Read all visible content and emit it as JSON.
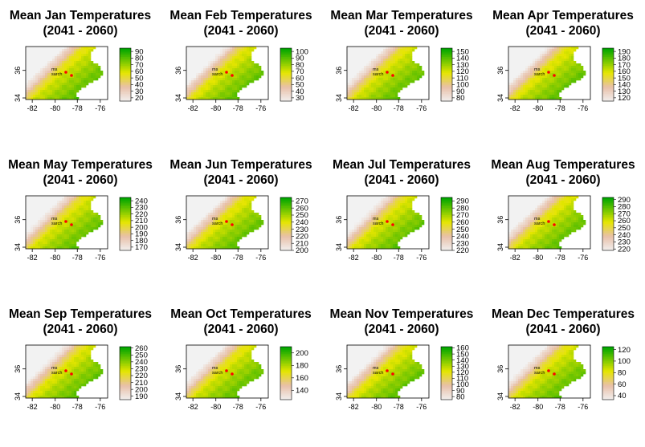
{
  "chart_data": [
    {
      "type": "heatmap",
      "title": "Mean Jan Temperatures",
      "subtitle": "(2041 - 2060)",
      "xticks": [
        "-82",
        "-80",
        "-78",
        "-76"
      ],
      "yticks": [
        "34",
        "36"
      ],
      "legend_ticks": [
        "20",
        "30",
        "40",
        "50",
        "60",
        "70",
        "80",
        "90"
      ],
      "legend_range": [
        15,
        95
      ],
      "state": "Jan"
    },
    {
      "type": "heatmap",
      "title": "Mean Feb Temperatures",
      "subtitle": "(2041 - 2060)",
      "xticks": [
        "-82",
        "-80",
        "-78",
        "-76"
      ],
      "yticks": [
        "34",
        "36"
      ],
      "legend_ticks": [
        "30",
        "40",
        "50",
        "60",
        "70",
        "80",
        "90",
        "100"
      ],
      "legend_range": [
        25,
        105
      ],
      "state": "Feb"
    },
    {
      "type": "heatmap",
      "title": "Mean Mar Temperatures",
      "subtitle": "(2041 - 2060)",
      "xticks": [
        "-82",
        "-80",
        "-78",
        "-76"
      ],
      "yticks": [
        "34",
        "36"
      ],
      "legend_ticks": [
        "80",
        "90",
        "100",
        "110",
        "120",
        "130",
        "140",
        "150"
      ],
      "legend_range": [
        75,
        155
      ],
      "state": "Mar"
    },
    {
      "type": "heatmap",
      "title": "Mean Apr Temperatures",
      "subtitle": "(2041 - 2060)",
      "xticks": [
        "-82",
        "-80",
        "-78",
        "-76"
      ],
      "yticks": [
        "34",
        "36"
      ],
      "legend_ticks": [
        "120",
        "130",
        "140",
        "150",
        "160",
        "170",
        "180",
        "190"
      ],
      "legend_range": [
        115,
        195
      ],
      "state": "Apr"
    },
    {
      "type": "heatmap",
      "title": "Mean May Temperatures",
      "subtitle": "(2041 - 2060)",
      "xticks": [
        "-82",
        "-80",
        "-78",
        "-76"
      ],
      "yticks": [
        "34",
        "36"
      ],
      "legend_ticks": [
        "170",
        "180",
        "190",
        "200",
        "210",
        "220",
        "230",
        "240"
      ],
      "legend_range": [
        165,
        245
      ],
      "state": "May"
    },
    {
      "type": "heatmap",
      "title": "Mean Jun Temperatures",
      "subtitle": "(2041 - 2060)",
      "xticks": [
        "-82",
        "-80",
        "-78",
        "-76"
      ],
      "yticks": [
        "34",
        "36"
      ],
      "legend_ticks": [
        "200",
        "210",
        "220",
        "230",
        "240",
        "250",
        "260",
        "270"
      ],
      "legend_range": [
        200,
        275
      ],
      "state": "Jun"
    },
    {
      "type": "heatmap",
      "title": "Mean Jul Temperatures",
      "subtitle": "(2041 - 2060)",
      "xticks": [
        "-82",
        "-80",
        "-78",
        "-76"
      ],
      "yticks": [
        "34",
        "36"
      ],
      "legend_ticks": [
        "220",
        "230",
        "240",
        "250",
        "260",
        "270",
        "280",
        "290"
      ],
      "legend_range": [
        220,
        295
      ],
      "state": "Jul"
    },
    {
      "type": "heatmap",
      "title": "Mean Aug Temperatures",
      "subtitle": "(2041 - 2060)",
      "xticks": [
        "-82",
        "-80",
        "-78",
        "-76"
      ],
      "yticks": [
        "34",
        "36"
      ],
      "legend_ticks": [
        "220",
        "230",
        "240",
        "250",
        "260",
        "270",
        "280",
        "290"
      ],
      "legend_range": [
        218,
        293
      ],
      "state": "Aug"
    },
    {
      "type": "heatmap",
      "title": "Mean Sep Temperatures",
      "subtitle": "(2041 - 2060)",
      "xticks": [
        "-82",
        "-80",
        "-78",
        "-76"
      ],
      "yticks": [
        "34",
        "36"
      ],
      "legend_ticks": [
        "190",
        "200",
        "210",
        "220",
        "230",
        "240",
        "250",
        "260"
      ],
      "legend_range": [
        185,
        262
      ],
      "state": "Sep"
    },
    {
      "type": "heatmap",
      "title": "Mean Oct Temperatures",
      "subtitle": "(2041 - 2060)",
      "xticks": [
        "-82",
        "-80",
        "-78",
        "-76"
      ],
      "yticks": [
        "34",
        "36"
      ],
      "legend_ticks": [
        "140",
        "160",
        "180",
        "200"
      ],
      "legend_range": [
        125,
        210
      ],
      "state": "Oct"
    },
    {
      "type": "heatmap",
      "title": "Mean Nov Temperatures",
      "subtitle": "(2041 - 2060)",
      "xticks": [
        "-82",
        "-80",
        "-78",
        "-76"
      ],
      "yticks": [
        "34",
        "36"
      ],
      "legend_ticks": [
        "80",
        "90",
        "100",
        "110",
        "120",
        "130",
        "140",
        "150",
        "160"
      ],
      "legend_range": [
        75,
        162
      ],
      "state": "Nov"
    },
    {
      "type": "heatmap",
      "title": "Mean Dec Temperatures",
      "subtitle": "(2041 - 2060)",
      "xticks": [
        "-82",
        "-80",
        "-78",
        "-76"
      ],
      "yticks": [
        "34",
        "36"
      ],
      "legend_ticks": [
        "40",
        "60",
        "80",
        "100",
        "120"
      ],
      "legend_range": [
        33,
        125
      ],
      "state": "Dec"
    }
  ],
  "map_labels": {
    "line1": "ms",
    "line2": "sarch"
  },
  "colors": {
    "low": "#f2f2f2",
    "mid_low": "#e8c0a8",
    "mid": "#e6e600",
    "high": "#00a600",
    "point": "#ff0000"
  }
}
